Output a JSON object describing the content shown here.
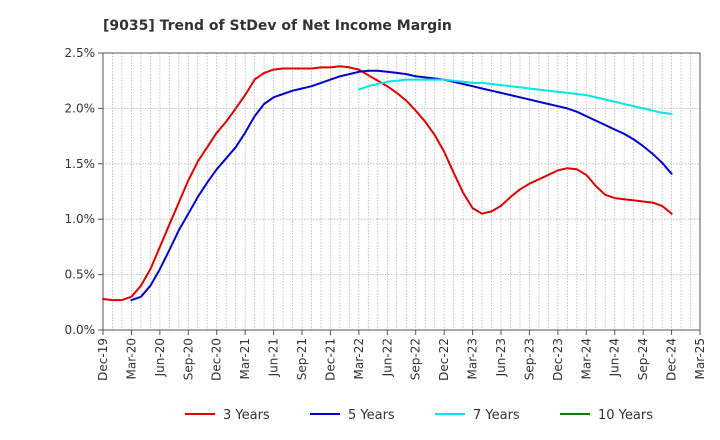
{
  "chart_data": {
    "type": "line",
    "title": "[9035]  Trend of StDev of Net Income Margin",
    "xlabel": "",
    "ylabel": "",
    "x_ticks": [
      "Dec-19",
      "Mar-20",
      "Jun-20",
      "Sep-20",
      "Dec-20",
      "Mar-21",
      "Jun-21",
      "Sep-21",
      "Dec-21",
      "Mar-22",
      "Jun-22",
      "Sep-22",
      "Dec-22",
      "Mar-23",
      "Jun-23",
      "Sep-23",
      "Dec-23",
      "Mar-24",
      "Jun-24",
      "Sep-24",
      "Dec-24",
      "Mar-25"
    ],
    "y_ticks": [
      "0.0%",
      "0.5%",
      "1.0%",
      "1.5%",
      "2.0%",
      "2.5%"
    ],
    "ylim": [
      0,
      2.5
    ],
    "y_unit": "%",
    "grid": true,
    "legend_position": "bottom",
    "series": [
      {
        "name": "3 Years",
        "color": "#dd0000",
        "x": [
          "2019-12",
          "2020-01",
          "2020-02",
          "2020-03",
          "2020-04",
          "2020-05",
          "2020-06",
          "2020-07",
          "2020-08",
          "2020-09",
          "2020-10",
          "2020-11",
          "2020-12",
          "2021-01",
          "2021-02",
          "2021-03",
          "2021-04",
          "2021-05",
          "2021-06",
          "2021-07",
          "2021-08",
          "2021-09",
          "2021-10",
          "2021-11",
          "2021-12",
          "2022-01",
          "2022-02",
          "2022-03",
          "2022-04",
          "2022-05",
          "2022-06",
          "2022-07",
          "2022-08",
          "2022-09",
          "2022-10",
          "2022-11",
          "2022-12",
          "2023-01",
          "2023-02",
          "2023-03",
          "2023-04",
          "2023-05",
          "2023-06",
          "2023-07",
          "2023-08",
          "2023-09",
          "2023-10",
          "2023-11",
          "2023-12",
          "2024-01",
          "2024-02",
          "2024-03",
          "2024-04",
          "2024-05",
          "2024-06",
          "2024-07",
          "2024-08",
          "2024-09",
          "2024-10",
          "2024-11",
          "2024-12"
        ],
        "values": [
          0.28,
          0.27,
          0.27,
          0.3,
          0.4,
          0.55,
          0.75,
          0.95,
          1.15,
          1.35,
          1.52,
          1.65,
          1.78,
          1.88,
          2.0,
          2.12,
          2.26,
          2.32,
          2.35,
          2.36,
          2.36,
          2.36,
          2.36,
          2.37,
          2.37,
          2.38,
          2.37,
          2.35,
          2.3,
          2.25,
          2.2,
          2.14,
          2.07,
          1.98,
          1.88,
          1.76,
          1.61,
          1.42,
          1.24,
          1.1,
          1.05,
          1.07,
          1.12,
          1.2,
          1.27,
          1.32,
          1.36,
          1.4,
          1.44,
          1.46,
          1.45,
          1.4,
          1.3,
          1.22,
          1.19,
          1.18,
          1.17,
          1.16,
          1.15,
          1.12,
          1.05
        ]
      },
      {
        "name": "5 Years",
        "color": "#0000cc",
        "x": [
          "2020-03",
          "2020-04",
          "2020-05",
          "2020-06",
          "2020-07",
          "2020-08",
          "2020-09",
          "2020-10",
          "2020-11",
          "2020-12",
          "2021-01",
          "2021-02",
          "2021-03",
          "2021-04",
          "2021-05",
          "2021-06",
          "2021-07",
          "2021-08",
          "2021-09",
          "2021-10",
          "2021-11",
          "2021-12",
          "2022-01",
          "2022-02",
          "2022-03",
          "2022-04",
          "2022-05",
          "2022-06",
          "2022-07",
          "2022-08",
          "2022-09",
          "2022-10",
          "2022-11",
          "2022-12",
          "2023-01",
          "2023-02",
          "2023-03",
          "2023-04",
          "2023-05",
          "2023-06",
          "2023-07",
          "2023-08",
          "2023-09",
          "2023-10",
          "2023-11",
          "2023-12",
          "2024-01",
          "2024-02",
          "2024-03",
          "2024-04",
          "2024-05",
          "2024-06",
          "2024-07",
          "2024-08",
          "2024-09",
          "2024-10",
          "2024-11",
          "2024-12"
        ],
        "values": [
          0.27,
          0.3,
          0.4,
          0.55,
          0.72,
          0.9,
          1.05,
          1.2,
          1.33,
          1.45,
          1.55,
          1.65,
          1.78,
          1.93,
          2.04,
          2.1,
          2.13,
          2.16,
          2.18,
          2.2,
          2.23,
          2.26,
          2.29,
          2.31,
          2.33,
          2.34,
          2.34,
          2.33,
          2.32,
          2.31,
          2.29,
          2.28,
          2.27,
          2.26,
          2.24,
          2.22,
          2.2,
          2.18,
          2.16,
          2.14,
          2.12,
          2.1,
          2.08,
          2.06,
          2.04,
          2.02,
          2.0,
          1.97,
          1.93,
          1.89,
          1.85,
          1.81,
          1.77,
          1.72,
          1.66,
          1.59,
          1.51,
          1.41
        ]
      },
      {
        "name": "7 Years",
        "color": "#00e5e5",
        "x": [
          "2022-03",
          "2022-04",
          "2022-05",
          "2022-06",
          "2022-07",
          "2022-08",
          "2022-09",
          "2022-10",
          "2022-11",
          "2022-12",
          "2023-01",
          "2023-02",
          "2023-03",
          "2023-04",
          "2023-05",
          "2023-06",
          "2023-07",
          "2023-08",
          "2023-09",
          "2023-10",
          "2023-11",
          "2023-12",
          "2024-01",
          "2024-02",
          "2024-03",
          "2024-04",
          "2024-05",
          "2024-06",
          "2024-07",
          "2024-08",
          "2024-09",
          "2024-10",
          "2024-11",
          "2024-12"
        ],
        "values": [
          2.17,
          2.2,
          2.22,
          2.24,
          2.25,
          2.26,
          2.26,
          2.26,
          2.26,
          2.26,
          2.25,
          2.24,
          2.23,
          2.23,
          2.22,
          2.21,
          2.2,
          2.19,
          2.18,
          2.17,
          2.16,
          2.15,
          2.14,
          2.13,
          2.12,
          2.1,
          2.08,
          2.06,
          2.04,
          2.02,
          2.0,
          1.98,
          1.96,
          1.95
        ]
      },
      {
        "name": "10 Years",
        "color": "#008000",
        "x": [],
        "values": []
      }
    ]
  }
}
